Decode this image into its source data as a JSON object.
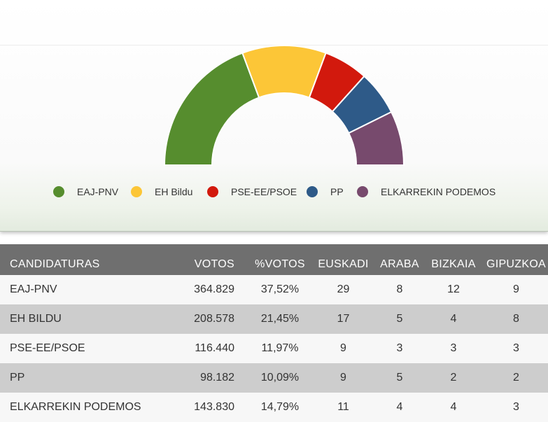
{
  "chart_data": {
    "type": "pie",
    "subtype": "parliament-hemicycle",
    "title": "",
    "series": [
      {
        "name": "EAJ-PNV",
        "seats": 29,
        "color": "#568d2e"
      },
      {
        "name": "EH Bildu",
        "seats": 17,
        "color": "#fcc637"
      },
      {
        "name": "PSE-EE/PSOE",
        "seats": 9,
        "color": "#d2190d"
      },
      {
        "name": "PP",
        "seats": 9,
        "color": "#2e5a88"
      },
      {
        "name": "ELKARREKIN PODEMOS",
        "seats": 11,
        "color": "#774a6d"
      }
    ],
    "legend_position": "bottom"
  },
  "table": {
    "headers": [
      "CANDIDATURAS",
      "VOTOS",
      "%VOTOS",
      "EUSKADI",
      "ARABA",
      "BIZKAIA",
      "GIPUZKOA"
    ],
    "rows": [
      {
        "name": "EAJ-PNV",
        "votos": "364.829",
        "pct": "37,52%",
        "euskadi": "29",
        "araba": "8",
        "bizkaia": "12",
        "gipuzkoa": "9"
      },
      {
        "name": "EH BILDU",
        "votos": "208.578",
        "pct": "21,45%",
        "euskadi": "17",
        "araba": "5",
        "bizkaia": "4",
        "gipuzkoa": "8"
      },
      {
        "name": "PSE-EE/PSOE",
        "votos": "116.440",
        "pct": "11,97%",
        "euskadi": "9",
        "araba": "3",
        "bizkaia": "3",
        "gipuzkoa": "3"
      },
      {
        "name": "PP",
        "votos": "98.182",
        "pct": "10,09%",
        "euskadi": "9",
        "araba": "5",
        "bizkaia": "2",
        "gipuzkoa": "2"
      },
      {
        "name": "ELKARREKIN PODEMOS",
        "votos": "143.830",
        "pct": "14,79%",
        "euskadi": "11",
        "araba": "4",
        "bizkaia": "4",
        "gipuzkoa": "3"
      }
    ]
  }
}
